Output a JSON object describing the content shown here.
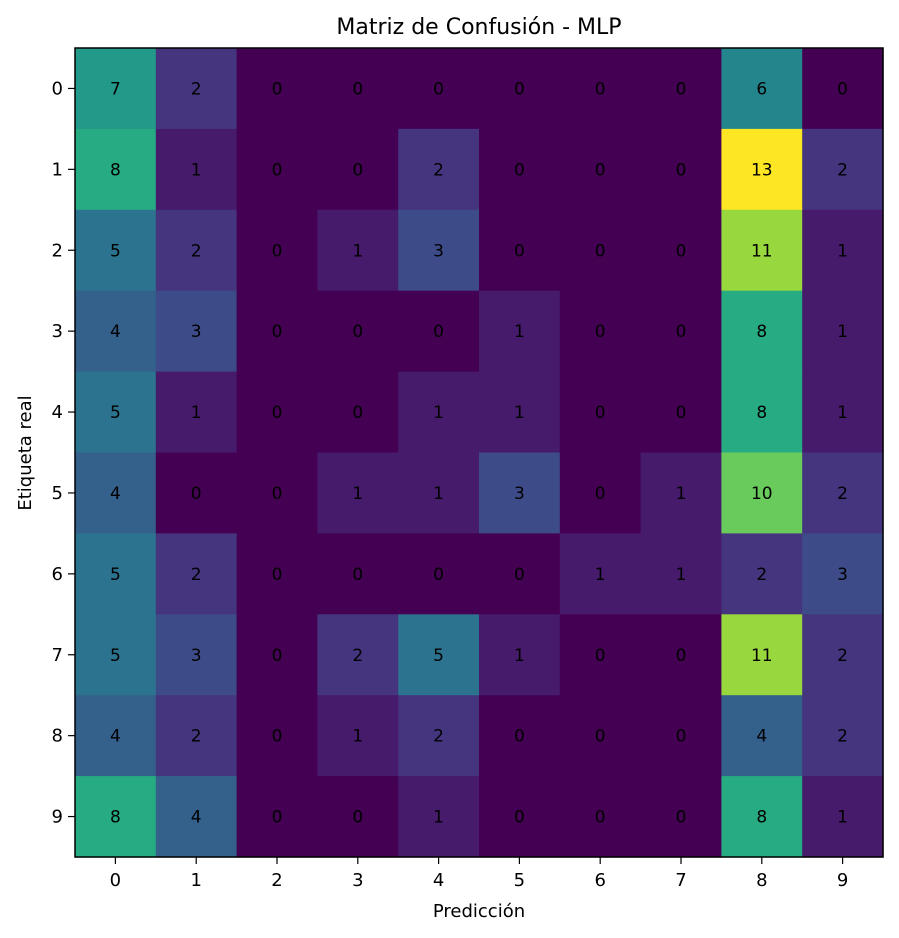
{
  "chart_data": {
    "type": "heatmap",
    "title": "Matriz de Confusión - MLP",
    "xlabel": "Predicción",
    "ylabel": "Etiqueta real",
    "x_categories": [
      "0",
      "1",
      "2",
      "3",
      "4",
      "5",
      "6",
      "7",
      "8",
      "9"
    ],
    "y_categories": [
      "0",
      "1",
      "2",
      "3",
      "4",
      "5",
      "6",
      "7",
      "8",
      "9"
    ],
    "values": [
      [
        7,
        2,
        0,
        0,
        0,
        0,
        0,
        0,
        6,
        0
      ],
      [
        8,
        1,
        0,
        0,
        2,
        0,
        0,
        0,
        13,
        2
      ],
      [
        5,
        2,
        0,
        1,
        3,
        0,
        0,
        0,
        11,
        1
      ],
      [
        4,
        3,
        0,
        0,
        0,
        1,
        0,
        0,
        8,
        1
      ],
      [
        5,
        1,
        0,
        0,
        1,
        1,
        0,
        0,
        8,
        1
      ],
      [
        4,
        0,
        0,
        1,
        1,
        3,
        0,
        1,
        10,
        2
      ],
      [
        5,
        2,
        0,
        0,
        0,
        0,
        1,
        1,
        2,
        3
      ],
      [
        5,
        3,
        0,
        2,
        5,
        1,
        0,
        0,
        11,
        2
      ],
      [
        4,
        2,
        0,
        1,
        2,
        0,
        0,
        0,
        4,
        2
      ],
      [
        8,
        4,
        0,
        0,
        1,
        0,
        0,
        0,
        8,
        1
      ]
    ],
    "colormap": "viridis",
    "value_range": [
      0,
      13
    ],
    "grid": false
  }
}
